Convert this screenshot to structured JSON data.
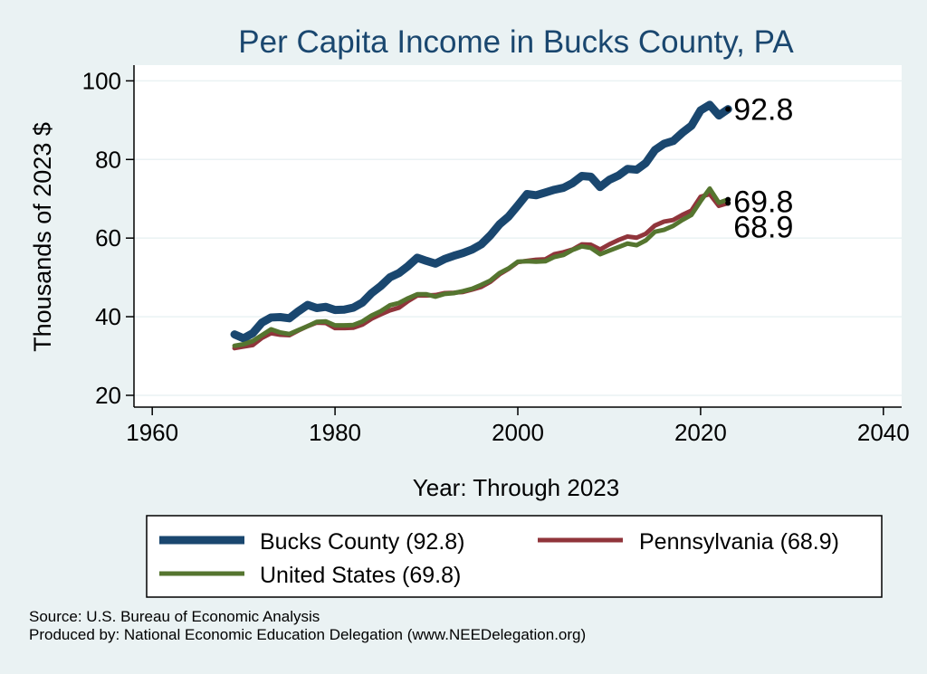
{
  "chart_data": {
    "type": "line",
    "title": "Per Capita Income in Bucks County, PA",
    "xlabel": "Year: Through 2023",
    "ylabel": "Thousands of 2023 $",
    "xlim": [
      1958,
      2042
    ],
    "ylim": [
      17,
      104
    ],
    "x_ticks": [
      1960,
      1980,
      2000,
      2020,
      2040
    ],
    "y_ticks": [
      20,
      40,
      60,
      80,
      100
    ],
    "grid": "horizontal",
    "legend_position": "bottom",
    "years": [
      1969,
      1970,
      1971,
      1972,
      1973,
      1974,
      1975,
      1976,
      1977,
      1978,
      1979,
      1980,
      1981,
      1982,
      1983,
      1984,
      1985,
      1986,
      1987,
      1988,
      1989,
      1990,
      1991,
      1992,
      1993,
      1994,
      1995,
      1996,
      1997,
      1998,
      1999,
      2000,
      2001,
      2002,
      2003,
      2004,
      2005,
      2006,
      2007,
      2008,
      2009,
      2010,
      2011,
      2012,
      2013,
      2014,
      2015,
      2016,
      2017,
      2018,
      2019,
      2020,
      2021,
      2022,
      2023
    ],
    "series": [
      {
        "name": "Bucks County (92.8)",
        "color": "#1a476f",
        "end_label": "92.8",
        "values": [
          35.5,
          34.5,
          35.8,
          38.5,
          39.8,
          39.9,
          39.6,
          41.4,
          43.0,
          42.2,
          42.5,
          41.7,
          41.8,
          42.3,
          43.6,
          46.0,
          47.8,
          50.0,
          51.1,
          52.9,
          55.0,
          54.2,
          53.5,
          54.7,
          55.5,
          56.2,
          57.1,
          58.4,
          60.7,
          63.5,
          65.5,
          68.3,
          71.2,
          70.9,
          71.6,
          72.3,
          72.8,
          74.0,
          75.8,
          75.6,
          73.0,
          74.8,
          75.9,
          77.6,
          77.4,
          79.1,
          82.4,
          84.0,
          84.7,
          86.8,
          88.6,
          92.5,
          93.9,
          91.2,
          92.8
        ]
      },
      {
        "name": "Pennsylvania (68.9)",
        "color": "#90353b",
        "end_label": "68.9",
        "values": [
          32.0,
          32.4,
          32.8,
          34.6,
          35.8,
          35.4,
          35.3,
          36.5,
          37.6,
          38.5,
          38.4,
          37.1,
          37.1,
          37.2,
          38.0,
          39.5,
          40.6,
          41.6,
          42.3,
          44.0,
          45.4,
          45.4,
          45.5,
          46.0,
          46.1,
          46.3,
          46.9,
          47.6,
          48.9,
          50.8,
          52.2,
          53.9,
          54.2,
          54.5,
          54.6,
          55.9,
          56.4,
          57.1,
          58.4,
          58.3,
          57.1,
          58.4,
          59.5,
          60.4,
          60.1,
          61.1,
          63.2,
          64.2,
          64.6,
          65.9,
          67.0,
          70.5,
          71.2,
          68.2,
          68.9
        ]
      },
      {
        "name": "United States (69.8)",
        "color": "#55752f",
        "end_label": "69.8",
        "values": [
          32.6,
          33.0,
          33.8,
          35.3,
          36.8,
          36.0,
          35.6,
          36.6,
          37.6,
          38.7,
          38.8,
          37.8,
          37.8,
          37.9,
          38.8,
          40.3,
          41.4,
          42.9,
          43.5,
          44.7,
          45.7,
          45.7,
          45.1,
          45.8,
          46.0,
          46.5,
          47.1,
          48.1,
          49.2,
          51.1,
          52.3,
          54.0,
          54.1,
          54.0,
          54.1,
          55.2,
          55.7,
          57.0,
          57.9,
          57.5,
          55.9,
          56.8,
          57.7,
          58.6,
          58.2,
          59.4,
          61.6,
          62.1,
          63.1,
          64.6,
          65.9,
          69.4,
          72.6,
          69.0,
          69.8
        ]
      }
    ]
  },
  "notes": {
    "source": "Source: U.S. Bureau of Economic Analysis",
    "produced_by": "Produced by: National Economic Education Delegation (www.NEEDelegation.org)"
  }
}
